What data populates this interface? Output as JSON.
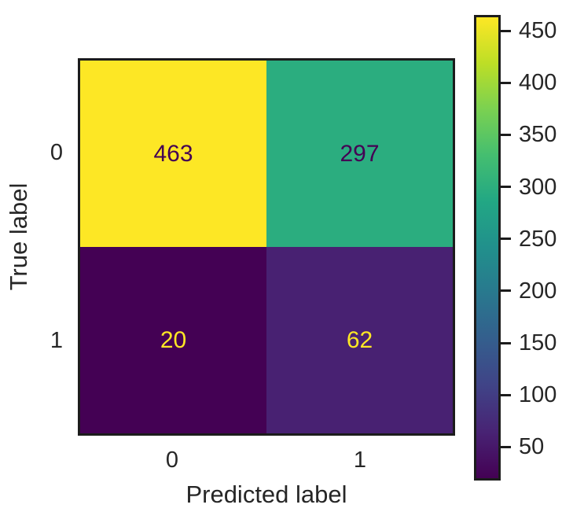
{
  "chart_data": {
    "type": "heatmap",
    "title": "",
    "xlabel": "Predicted label",
    "ylabel": "True label",
    "x_tick_labels": [
      "0",
      "1"
    ],
    "y_tick_labels": [
      "0",
      "1"
    ],
    "matrix": [
      [
        463,
        297
      ],
      [
        20,
        62
      ]
    ],
    "annotations": [
      [
        "463",
        "297"
      ],
      [
        "20",
        "62"
      ]
    ],
    "vmin": 20,
    "vmax": 463,
    "colormap": "viridis",
    "grid": false,
    "legend": false,
    "cell_colors": [
      [
        "#fde725",
        "#2bad7f"
      ],
      [
        "#440154",
        "#482172"
      ]
    ],
    "cell_text_colors": [
      [
        "#440154",
        "#440154"
      ],
      [
        "#fde725",
        "#fde725"
      ]
    ],
    "colorbar": {
      "position": "right",
      "tick_values": [
        450,
        400,
        350,
        300,
        250,
        200,
        150,
        100,
        50
      ],
      "tick_labels": [
        "450",
        "400",
        "350",
        "300",
        "250",
        "200",
        "150",
        "100",
        "50"
      ]
    }
  },
  "style": {
    "background": "#ffffff",
    "frame_color": "#1c1c1c",
    "axis_text_color": "#262626",
    "viridis_stops": [
      {
        "t": 0.0,
        "color": "#440154"
      },
      {
        "t": 0.1,
        "color": "#482374"
      },
      {
        "t": 0.2,
        "color": "#404387"
      },
      {
        "t": 0.3,
        "color": "#345e8d"
      },
      {
        "t": 0.4,
        "color": "#29788e"
      },
      {
        "t": 0.5,
        "color": "#21908c"
      },
      {
        "t": 0.6,
        "color": "#22a784"
      },
      {
        "t": 0.7,
        "color": "#44be70"
      },
      {
        "t": 0.8,
        "color": "#7ad151"
      },
      {
        "t": 0.9,
        "color": "#bdde26"
      },
      {
        "t": 1.0,
        "color": "#fde725"
      }
    ]
  }
}
